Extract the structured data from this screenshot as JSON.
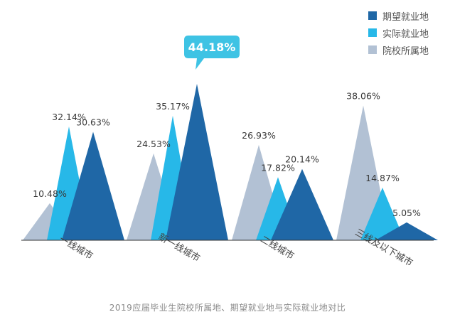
{
  "chart_data": {
    "type": "bar",
    "title": "2019应届毕业生院校所属地、期望就业地与实际就业地对比",
    "categories": [
      "一线城市",
      "新一线城市",
      "二线城市",
      "三线及以下城市"
    ],
    "series": [
      {
        "name": "期望就业地",
        "color": "#1f67a6",
        "values": [
          30.63,
          44.18,
          20.14,
          5.05
        ]
      },
      {
        "name": "实际就业地",
        "color": "#27b8e8",
        "values": [
          32.14,
          35.17,
          17.82,
          14.87
        ]
      },
      {
        "name": "院校所属地",
        "color": "#b2c1d4",
        "values": [
          10.48,
          24.53,
          26.93,
          38.06
        ]
      }
    ],
    "data_labels": [
      [
        "30.63%",
        "44.18%",
        "20.14%",
        "5.05%"
      ],
      [
        "32.14%",
        "35.17%",
        "17.82%",
        "14.87%"
      ],
      [
        "10.48%",
        "24.53%",
        "26.93%",
        "38.06%"
      ]
    ],
    "highlight": {
      "series": 0,
      "category": 1,
      "label": "44.18%",
      "color": "#3ec3e4"
    },
    "ylim": [
      0,
      44.18
    ],
    "legend": "top-right",
    "grid": false
  }
}
